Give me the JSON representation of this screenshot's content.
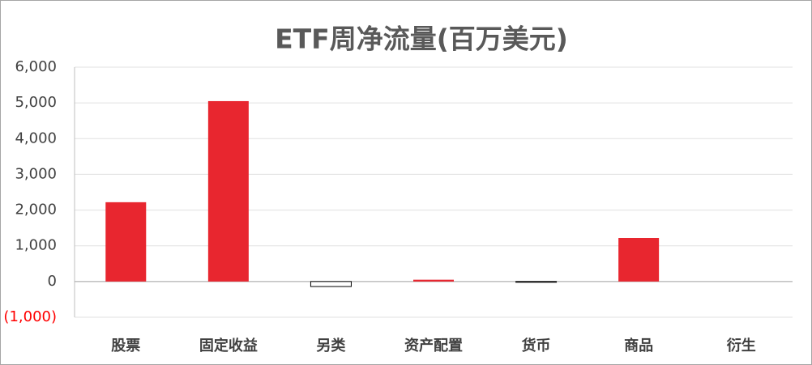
{
  "chart_data": {
    "type": "bar",
    "title": "ETF周净流量(百万美元)",
    "categories": [
      "股票",
      "固定收益",
      "另类",
      "资产配置",
      "货币",
      "商品",
      "衍生"
    ],
    "values": [
      2220,
      5050,
      -140,
      50,
      -20,
      1220,
      0
    ],
    "color": "#e8262f",
    "negative_fill": "#ffffff",
    "negative_stroke": "#000000",
    "ylim": [
      -1000,
      6000
    ],
    "yticks": [
      {
        "value": -1000,
        "label": "(1,000)"
      },
      0,
      {
        "value": 1000,
        "label": "1,000"
      },
      {
        "value": 2000,
        "label": "2,000"
      },
      {
        "value": 3000,
        "label": "3,000"
      },
      {
        "value": 4000,
        "label": "4,000"
      },
      {
        "value": 5000,
        "label": "5,000"
      },
      {
        "value": 6000,
        "label": "6,000"
      }
    ],
    "negative_tick_color": "#ff0000",
    "grid": true
  }
}
